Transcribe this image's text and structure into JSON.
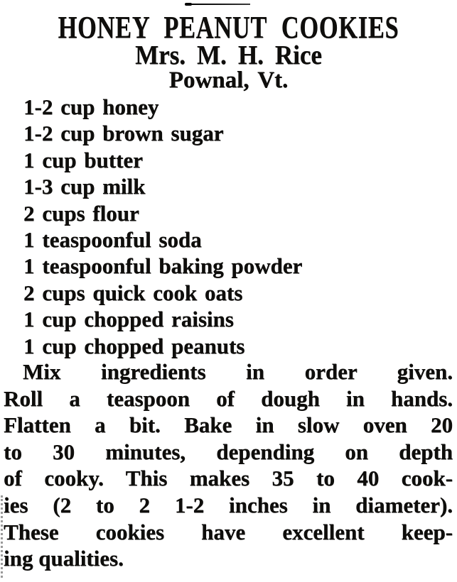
{
  "colors": {
    "ink": "#0f0e0c",
    "paper": "#ffffff"
  },
  "header": {
    "title": "HONEY PEANUT COOKIES",
    "byline": "Mrs. M. H. Rice",
    "location": "Pownal, Vt."
  },
  "ingredients": [
    "1-2 cup honey",
    "1-2 cup brown sugar",
    "1 cup butter",
    "1-3 cup milk",
    "2 cups flour",
    "1 teaspoonful soda",
    "1 teaspoonful baking powder",
    "2 cups quick cook oats",
    "1 cup chopped raisins",
    "1 cup chopped peanuts"
  ],
  "instructions": {
    "lines": [
      "Mix ingredients in order given.",
      "Roll a teaspoon of dough in hands.",
      "Flatten a bit. Bake in slow oven 20",
      "to 30 minutes, depending on depth",
      "of cooky. This makes 35 to 40 cook-",
      "ies (2 to 2 1-2 inches in diameter).",
      "These cookies have excellent keep-",
      "ing qualities."
    ]
  }
}
